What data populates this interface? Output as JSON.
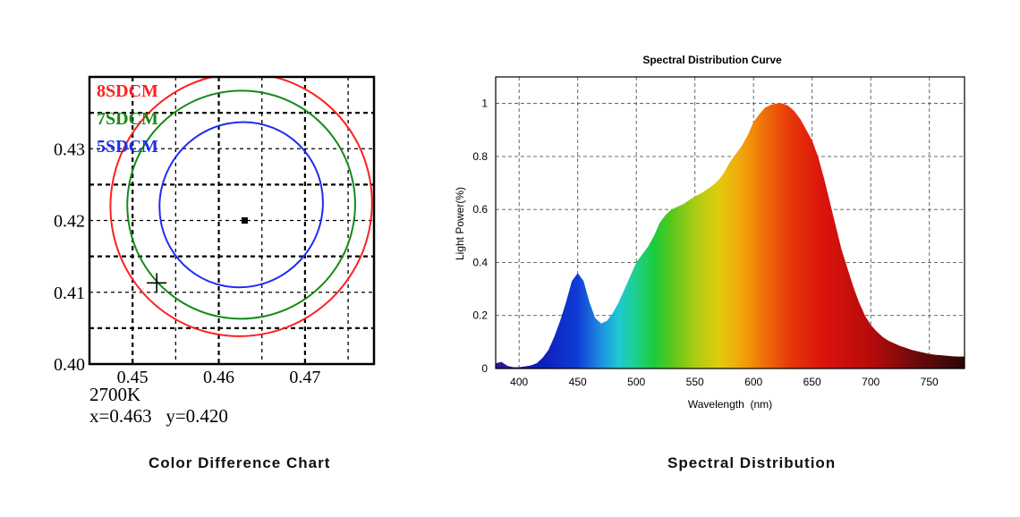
{
  "captions": {
    "left": "Color Difference Chart",
    "right": "Spectral Distribution"
  },
  "colors": {
    "sdcm8": "#ff2020",
    "sdcm7": "#158a15",
    "sdcm5": "#1f2df0"
  },
  "chart_data": [
    {
      "type": "scatter",
      "title": "",
      "xlabel": "",
      "ylabel": "",
      "xlim": [
        0.445,
        0.478
      ],
      "ylim": [
        0.4,
        0.44
      ],
      "x_ticks": [
        "0.45",
        "0.46",
        "0.47"
      ],
      "y_ticks": [
        "0.40",
        "0.41",
        "0.42",
        "0.43"
      ],
      "grid": true,
      "legend": [
        "8SDCM",
        "7SDCM",
        "5SDCM"
      ],
      "legend_position": "top-left",
      "ellipses": [
        {
          "name": "8SDCM",
          "color": "#ff2020",
          "center": [
            0.4626,
            0.4222
          ],
          "rx": 0.0151,
          "ry": 0.0184,
          "angle_deg": 33
        },
        {
          "name": "7SDCM",
          "color": "#158a15",
          "center": [
            0.4626,
            0.4222
          ],
          "rx": 0.0132,
          "ry": 0.0159,
          "angle_deg": 33
        },
        {
          "name": "5SDCM",
          "color": "#1f2df0",
          "center": [
            0.4626,
            0.4222
          ],
          "rx": 0.0094,
          "ry": 0.0116,
          "angle_deg": 33
        }
      ],
      "center_point": {
        "x": 0.463,
        "y": 0.42
      },
      "cross_marker": {
        "x": 0.4528,
        "y": 0.4113
      },
      "cct_label": "2700K",
      "coord_label": "x=0.463   y=0.420"
    },
    {
      "type": "area",
      "title": "Spectral Distribution Curve",
      "xlabel": "Wavelength  (nm)",
      "ylabel": "Light Power(%)",
      "xlim": [
        380,
        780
      ],
      "ylim": [
        0,
        1.1
      ],
      "x_ticks": [
        "400",
        "450",
        "500",
        "550",
        "600",
        "650",
        "700",
        "750"
      ],
      "y_ticks": [
        "0",
        "0.2",
        "0.4",
        "0.6",
        "0.8",
        "1"
      ],
      "grid": true,
      "fill": "visible-spectrum gradient",
      "x": [
        380,
        385,
        390,
        395,
        400,
        405,
        410,
        415,
        420,
        425,
        430,
        435,
        440,
        445,
        450,
        455,
        460,
        465,
        470,
        475,
        480,
        485,
        490,
        495,
        500,
        505,
        510,
        515,
        520,
        525,
        530,
        535,
        540,
        545,
        550,
        555,
        560,
        565,
        570,
        575,
        580,
        585,
        590,
        595,
        600,
        605,
        610,
        615,
        620,
        625,
        630,
        635,
        640,
        645,
        650,
        655,
        660,
        665,
        670,
        675,
        680,
        685,
        690,
        695,
        700,
        705,
        710,
        715,
        720,
        725,
        730,
        735,
        740,
        745,
        750,
        755,
        760,
        765,
        770,
        775,
        780
      ],
      "y": [
        0.02,
        0.025,
        0.01,
        0.005,
        0.005,
        0.008,
        0.012,
        0.02,
        0.04,
        0.07,
        0.12,
        0.18,
        0.25,
        0.33,
        0.36,
        0.33,
        0.25,
        0.19,
        0.17,
        0.18,
        0.21,
        0.25,
        0.3,
        0.35,
        0.4,
        0.43,
        0.46,
        0.5,
        0.55,
        0.58,
        0.6,
        0.61,
        0.62,
        0.635,
        0.65,
        0.66,
        0.675,
        0.69,
        0.71,
        0.74,
        0.78,
        0.81,
        0.84,
        0.88,
        0.93,
        0.96,
        0.985,
        0.995,
        1.0,
        1.0,
        0.99,
        0.97,
        0.94,
        0.9,
        0.86,
        0.8,
        0.72,
        0.63,
        0.54,
        0.45,
        0.38,
        0.31,
        0.25,
        0.2,
        0.165,
        0.14,
        0.12,
        0.105,
        0.095,
        0.085,
        0.078,
        0.07,
        0.065,
        0.06,
        0.055,
        0.052,
        0.05,
        0.048,
        0.046,
        0.045,
        0.045
      ]
    }
  ]
}
